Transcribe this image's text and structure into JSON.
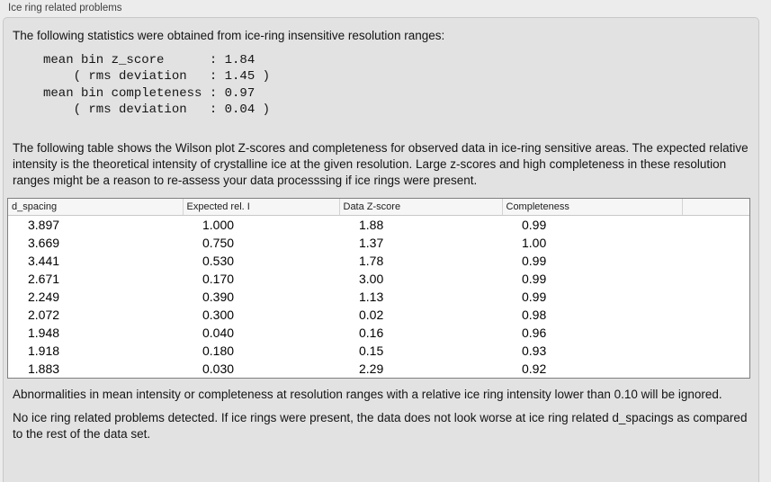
{
  "panel": {
    "title": "Ice ring related problems"
  },
  "intro": "The following statistics were obtained from ice-ring insensitive resolution ranges:",
  "stats_block": {
    "lines": [
      "mean bin z_score      : 1.84",
      "    ( rms deviation   : 1.45 )",
      "mean bin completeness : 0.97",
      "    ( rms deviation   : 0.04 )"
    ]
  },
  "description": "The following table shows the Wilson plot Z-scores and completeness for observed data in ice-ring sensitive areas. The expected relative intensity is the theoretical intensity of crystalline ice at the given resolution. Large z-scores and high completeness in these resolution ranges might be a reason to re-assess your data processsing if ice rings were present.",
  "table": {
    "columns": [
      "d_spacing",
      "Expected rel. I",
      "Data Z-score",
      "Completeness"
    ],
    "rows": [
      [
        "3.897",
        "1.000",
        "1.88",
        "0.99"
      ],
      [
        "3.669",
        "0.750",
        "1.37",
        "1.00"
      ],
      [
        "3.441",
        "0.530",
        "1.78",
        "0.99"
      ],
      [
        "2.671",
        "0.170",
        "3.00",
        "0.99"
      ],
      [
        "2.249",
        "0.390",
        "1.13",
        "0.99"
      ],
      [
        "2.072",
        "0.300",
        "0.02",
        "0.98"
      ],
      [
        "1.948",
        "0.040",
        "0.16",
        "0.96"
      ],
      [
        "1.918",
        "0.180",
        "0.15",
        "0.93"
      ],
      [
        "1.883",
        "0.030",
        "2.29",
        "0.92"
      ]
    ]
  },
  "note_ignore": "Abnormalities in mean intensity or completeness at resolution ranges with a relative ice ring intensity lower than 0.10 will be ignored.",
  "conclusion": "No ice ring related problems detected. If ice rings were present, the data does not look worse at ice ring related d_spacings as compared to the rest of the data set."
}
